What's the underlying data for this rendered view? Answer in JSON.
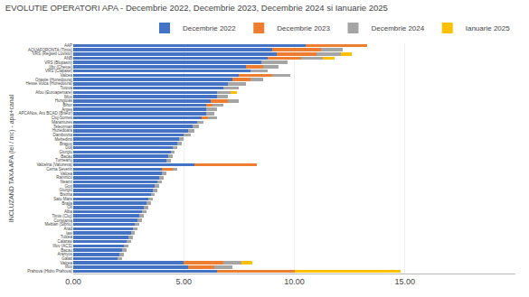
{
  "chart_data": {
    "type": "bar",
    "orientation": "horizontal",
    "stacked": true,
    "title": "EVOLUTIE OPERATORI APA - Decembrie 2022, Decembrie 2023, Decembrie 2024 si Ianuarie 2025",
    "ylabel": "INCLUZAND TAXA APA (lei / mc) - apa+canal",
    "grid": true,
    "legend": "upper right",
    "xlim": [
      0,
      20
    ],
    "xticks": [
      {
        "value": 0,
        "label": "0.00"
      },
      {
        "value": 5,
        "label": "5.00"
      },
      {
        "value": 10,
        "label": "10.00"
      },
      {
        "value": 15,
        "label": "15.00"
      }
    ],
    "categories": [
      "AAP",
      "AQUAFORONTA (Timis)",
      "VRS (Regseti Luvisto)",
      "ANB",
      "VRS (Blopasni)",
      "Iifty (Chetue)",
      "VRS (Clapase)",
      "Valcea",
      "Orastie (Hunedoura)",
      "Hesse Vulca (Hunedoura)",
      "Tutova",
      "Afou (Euroapemare)",
      "Ilifov",
      "Hungtoas",
      "Bihor",
      "Arges",
      "APCANos, Aro BCAD (Brieur)",
      "Cluj-Somes",
      "Maramures",
      "Teleorman",
      "Hunedoara",
      "Dambovita",
      "Mehedinti",
      "Brasov",
      "Dolj",
      "Giurgiu",
      "Bacau",
      "Turneanu",
      "Valcelna (Valuneva)",
      "Cerna Severin",
      "Valcea",
      "Ramnicu",
      "Neamt",
      "Gorj",
      "Giurgiu",
      "Bistrita",
      "Satu Mare",
      "Braila",
      "Olt",
      "Alba",
      "Timis (Cluj)",
      "Constanta",
      "Mebian (Sibriu)",
      "Arad",
      "Iasi",
      "Tulcea",
      "Calarasi",
      "Ilfov (ACS)",
      "Bacau",
      "Aranyos",
      "Galati",
      "Valcea",
      "Ilfov",
      "Prahova (Hidro Prahova)"
    ],
    "series": [
      {
        "name": "Decembrie 2022",
        "color": "#4472C4",
        "values": [
          10.5,
          9.0,
          9.2,
          8.8,
          8.5,
          7.8,
          8.0,
          7.5,
          7.2,
          7.0,
          6.8,
          6.5,
          6.5,
          6.2,
          6.0,
          6.0,
          6.0,
          5.8,
          5.6,
          5.4,
          5.2,
          5.0,
          4.8,
          4.7,
          4.5,
          4.4,
          4.3,
          4.2,
          5.5,
          4.0,
          4.0,
          3.9,
          3.8,
          3.7,
          3.6,
          3.5,
          3.4,
          3.3,
          3.2,
          3.1,
          3.0,
          2.9,
          2.8,
          2.7,
          2.6,
          2.5,
          2.4,
          2.3,
          2.2,
          2.1,
          2.0,
          5.0,
          5.2,
          6.5
        ]
      },
      {
        "name": "Decembrie 2023",
        "color": "#ED7D31",
        "values": [
          2.8,
          2.2,
          1.8,
          1.5,
          0.0,
          0.8,
          0.0,
          1.5,
          0.8,
          0.0,
          0.0,
          0.0,
          0.0,
          0.8,
          0.3,
          0.0,
          0.0,
          0.3,
          0.0,
          0.0,
          0.0,
          0.0,
          0.0,
          0.0,
          0.0,
          0.0,
          0.0,
          0.0,
          2.8,
          0.5,
          0.0,
          0.0,
          0.0,
          0.0,
          0.0,
          0.0,
          0.0,
          0.0,
          0.0,
          0.0,
          0.0,
          0.0,
          0.0,
          0.0,
          0.0,
          0.0,
          0.0,
          0.0,
          0.0,
          0.0,
          0.0,
          1.8,
          1.2,
          3.5
        ]
      },
      {
        "name": "Decembrie 2024",
        "color": "#A5A5A5",
        "values": [
          0.0,
          1.0,
          1.1,
          1.0,
          1.2,
          0.7,
          0.8,
          0.8,
          0.6,
          0.8,
          0.7,
          0.6,
          0.5,
          0.5,
          0.5,
          0.5,
          0.4,
          0.4,
          0.3,
          0.3,
          0.3,
          0.3,
          0.2,
          0.2,
          0.2,
          0.2,
          0.2,
          0.2,
          0.0,
          0.2,
          0.2,
          0.2,
          0.2,
          0.2,
          0.2,
          0.2,
          0.2,
          0.2,
          0.2,
          0.2,
          0.2,
          0.2,
          0.2,
          0.2,
          0.2,
          0.2,
          0.2,
          0.2,
          0.2,
          0.2,
          0.2,
          0.8,
          0.8,
          0.0
        ]
      },
      {
        "name": "Ianuarie 2025",
        "color": "#FFC000",
        "values": [
          0.0,
          0.0,
          0.5,
          0.5,
          0.0,
          0.0,
          0.0,
          0.0,
          0.0,
          0.0,
          0.0,
          0.3,
          0.0,
          0.0,
          0.0,
          0.0,
          0.0,
          0.0,
          0.0,
          0.0,
          0.0,
          0.0,
          0.0,
          0.0,
          0.0,
          0.0,
          0.0,
          0.0,
          0.0,
          0.0,
          0.0,
          0.0,
          0.0,
          0.0,
          0.0,
          0.0,
          0.0,
          0.0,
          0.0,
          0.0,
          0.0,
          0.0,
          0.0,
          0.0,
          0.0,
          0.0,
          0.0,
          0.0,
          0.0,
          0.0,
          0.0,
          0.5,
          0.0,
          4.8
        ]
      }
    ]
  }
}
